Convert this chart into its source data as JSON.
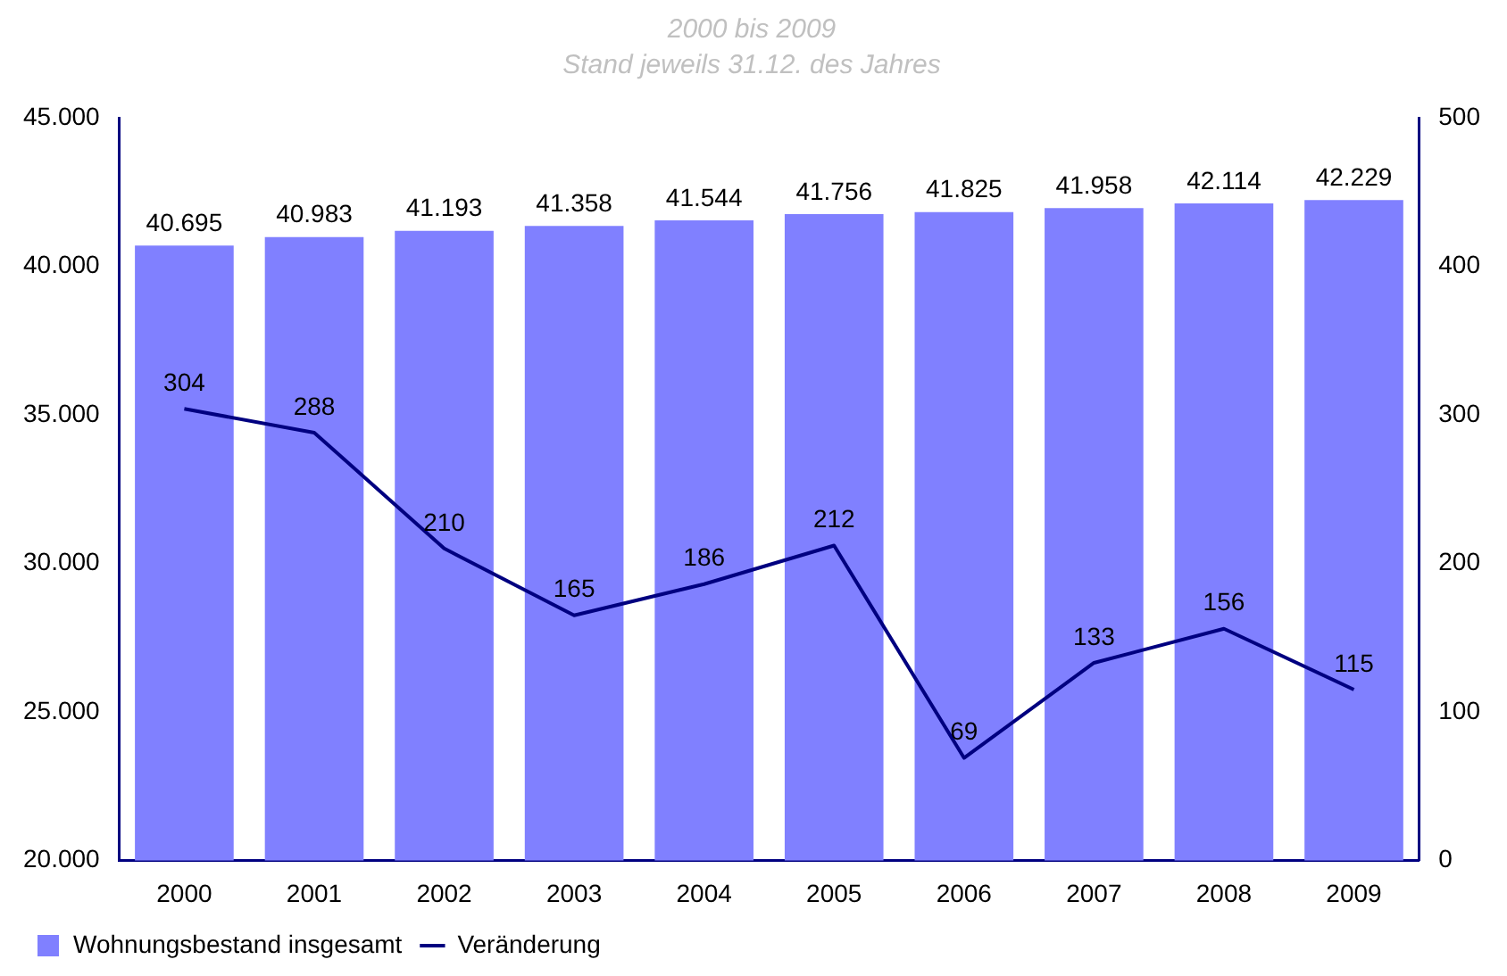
{
  "chart_data": {
    "type": "bar",
    "title": "2000 bis 2009",
    "subtitle": "Stand jeweils 31.12. des Jahres",
    "categories": [
      "2000",
      "2001",
      "2002",
      "2003",
      "2004",
      "2005",
      "2006",
      "2007",
      "2008",
      "2009"
    ],
    "series": [
      {
        "name": "Wohnungsbestand insgesamt",
        "color": "#8080ff",
        "values": [
          40695,
          40983,
          41193,
          41358,
          41544,
          41756,
          41825,
          41958,
          42114,
          42229
        ],
        "value_labels": [
          "40.695",
          "40.983",
          "41.193",
          "41.358",
          "41.544",
          "41.756",
          "41.825",
          "41.958",
          "42.114",
          "42.229"
        ]
      },
      {
        "name": "Veränderung",
        "type": "line",
        "axis": "y2",
        "color": "#000080",
        "values": [
          304,
          288,
          210,
          165,
          186,
          212,
          69,
          133,
          156,
          115
        ],
        "value_labels": [
          "304",
          "288",
          "210",
          "165",
          "186",
          "212",
          "69",
          "133",
          "156",
          "115"
        ]
      }
    ],
    "ylim": [
      20000,
      45000
    ],
    "yticks": [
      {
        "value": 20000,
        "label": "20.000"
      },
      {
        "value": 25000,
        "label": "25.000"
      },
      {
        "value": 30000,
        "label": "30.000"
      },
      {
        "value": 35000,
        "label": "35.000"
      },
      {
        "value": 40000,
        "label": "40.000"
      },
      {
        "value": 45000,
        "label": "45.000"
      }
    ],
    "y2lim": [
      0,
      500
    ],
    "y2ticks": [
      0,
      100,
      200,
      300,
      400,
      500
    ],
    "grid": false,
    "legend": "bottom left",
    "marker": "none",
    "line_style": "solid"
  }
}
